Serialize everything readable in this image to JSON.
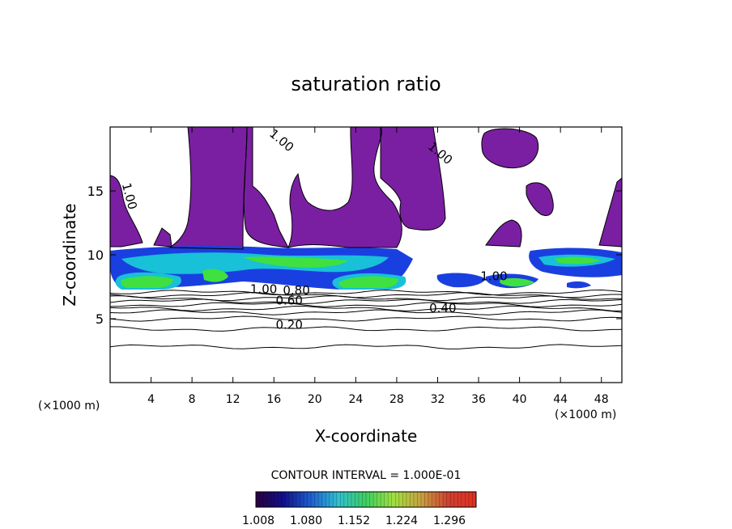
{
  "chart_data": {
    "type": "heatmap",
    "title": "saturation ratio",
    "xlabel": "X-coordinate",
    "ylabel": "Z-coordinate",
    "x_unit": "(×1000 m)",
    "y_unit": "(×1000 m)",
    "xlim": [
      0,
      50
    ],
    "ylim": [
      0,
      20
    ],
    "x_ticks": [
      4,
      8,
      12,
      16,
      20,
      24,
      28,
      32,
      36,
      40,
      44,
      48
    ],
    "y_ticks": [
      5,
      10,
      15
    ],
    "contour_interval_text": "CONTOUR INTERVAL = 1.000E-01",
    "contour_labels": [
      {
        "text": "0.20",
        "x": 17.5,
        "z": 4.2
      },
      {
        "text": "0.40",
        "x": 32.5,
        "z": 5.5
      },
      {
        "text": "0.60",
        "x": 17.5,
        "z": 6.1
      },
      {
        "text": "0.80",
        "x": 18.2,
        "z": 6.9
      },
      {
        "text": "1.00",
        "x": 15.0,
        "z": 7.0
      },
      {
        "text": "1.00",
        "x": 37.5,
        "z": 8.0
      },
      {
        "text": "1.00",
        "x": 16.5,
        "z": 18.7
      },
      {
        "text": "1.00",
        "x": 32.0,
        "z": 17.7
      },
      {
        "text": "1.00",
        "x": 1.5,
        "z": 14.5
      }
    ],
    "colorbar": {
      "ticks": [
        "1.008",
        "1.080",
        "1.152",
        "1.224",
        "1.296"
      ],
      "colors": [
        "#2a0040",
        "#10108a",
        "#1f5fd0",
        "#30c0d0",
        "#3cd060",
        "#a0e040",
        "#c8a040",
        "#d04030",
        "#e03020"
      ]
    },
    "region_colors": {
      "purple": "#7a1fa2",
      "blue": "#1a3fe0",
      "cyan": "#18c0d8",
      "green": "#40e040"
    }
  }
}
